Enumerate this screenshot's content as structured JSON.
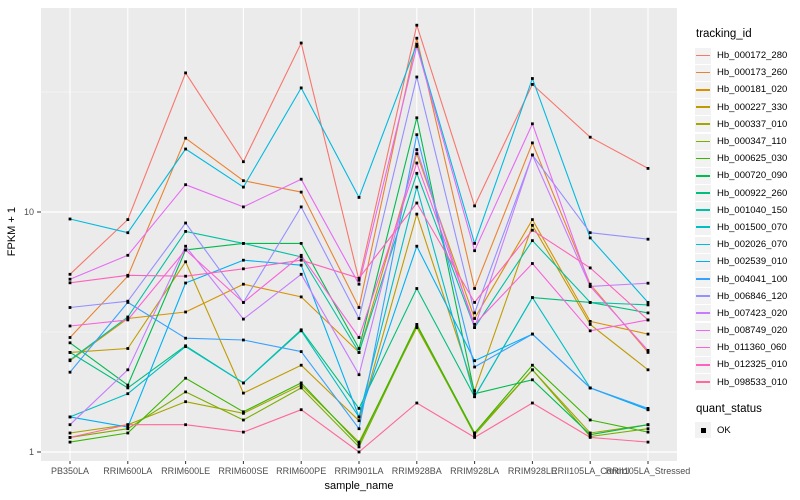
{
  "chart_data": {
    "type": "line",
    "title": "",
    "xlabel": "sample_name",
    "ylabel": "FPKM + 1",
    "y_scale": "log10",
    "y_ticks": [
      1,
      10
    ],
    "y_minor_ticks": [
      3.1623,
      31.623
    ],
    "ylim": [
      0.92,
      71
    ],
    "grid": true,
    "panel_bg": "#EBEBEB",
    "grid_color": "#FFFFFF",
    "tick_label_color": "#4D4D4D",
    "marker": {
      "shape": "square",
      "color": "#000000"
    },
    "legend": {
      "title": "tracking_id",
      "position": "right"
    },
    "quant_legend": {
      "title": "quant_status",
      "items": [
        {
          "label": "OK",
          "marker": "black-square"
        }
      ]
    },
    "categories": [
      "PB350LA",
      "RRIM600LA",
      "RRIM600LE",
      "RRIM600SE",
      "RRIM600PE",
      "RRIM901LA",
      "RRIM928BA",
      "RRIM928LA",
      "RRIM928LE",
      "RRII105LA_Control",
      "RRII105LA_Stressed"
    ],
    "series": [
      {
        "name": "Hb_000172_280",
        "color": "#F8766D",
        "values": [
          5.5,
          9.3,
          38,
          16.2,
          50.6,
          5.2,
          60,
          10.6,
          34,
          20.5,
          15.2
        ]
      },
      {
        "name": "Hb_000173_260",
        "color": "#EA8331",
        "values": [
          3.0,
          5.4,
          20.3,
          13.5,
          12.1,
          4.0,
          53,
          4.8,
          19.4,
          5.0,
          2.6
        ]
      },
      {
        "name": "Hb_000181_020",
        "color": "#D89200",
        "values": [
          2.4,
          3.6,
          3.83,
          5.0,
          4.43,
          2.6,
          17.5,
          3.6,
          9.3,
          3.5,
          3.1
        ]
      },
      {
        "name": "Hb_000227_330",
        "color": "#C09B00",
        "values": [
          2.6,
          2.7,
          6.2,
          1.76,
          2.3,
          1.35,
          9.8,
          1.8,
          8.8,
          3.4,
          2.2
        ]
      },
      {
        "name": "Hb_000337_010",
        "color": "#A3A500",
        "values": [
          1.2,
          1.3,
          1.62,
          1.45,
          1.9,
          1.1,
          3.3,
          1.2,
          2.2,
          1.2,
          1.3
        ]
      },
      {
        "name": "Hb_000347_110",
        "color": "#7CAE00",
        "values": [
          1.15,
          1.25,
          1.78,
          1.36,
          1.85,
          1.05,
          3.35,
          1.18,
          2.2,
          1.16,
          1.25
        ]
      },
      {
        "name": "Hb_000625_030",
        "color": "#39B600",
        "values": [
          1.1,
          1.2,
          2.03,
          1.47,
          1.94,
          1.08,
          3.4,
          1.2,
          2.3,
          1.36,
          1.21
        ]
      },
      {
        "name": "Hb_000720_090",
        "color": "#00BB4E",
        "values": [
          2.85,
          1.9,
          6.95,
          7.4,
          7.4,
          2.7,
          24.7,
          1.75,
          2.0,
          1.18,
          1.3
        ]
      },
      {
        "name": "Hb_000922_260",
        "color": "#00BF7D",
        "values": [
          2.6,
          1.85,
          2.77,
          1.94,
          3.23,
          1.52,
          4.8,
          1.7,
          4.4,
          4.2,
          3.8
        ]
      },
      {
        "name": "Hb_001040_150",
        "color": "#00C1A3",
        "values": [
          2.42,
          3.65,
          8.3,
          7.4,
          6.5,
          2.6,
          14.5,
          3.3,
          7.6,
          4.2,
          4.1
        ]
      },
      {
        "name": "Hb_001500_070",
        "color": "#00BFC4",
        "values": [
          1.4,
          1.75,
          2.75,
          1.94,
          3.2,
          1.4,
          12.7,
          1.7,
          4.4,
          1.85,
          1.5
        ]
      },
      {
        "name": "Hb_002026_070",
        "color": "#00BAE0",
        "values": [
          9.35,
          8.2,
          18.3,
          12.7,
          32.9,
          11.5,
          50,
          7.4,
          36,
          7.8,
          4.2
        ]
      },
      {
        "name": "Hb_002539_010",
        "color": "#00B0F6",
        "values": [
          1.4,
          1.27,
          5.06,
          6.3,
          6.0,
          1.4,
          7.2,
          2.4,
          3.1,
          1.85,
          1.5
        ]
      },
      {
        "name": "Hb_004041_100",
        "color": "#35A2FF",
        "values": [
          2.15,
          4.2,
          2.98,
          2.93,
          2.62,
          1.25,
          21,
          2.26,
          3.1,
          1.85,
          1.52
        ]
      },
      {
        "name": "Hb_006846_120",
        "color": "#9590FF",
        "values": [
          4.0,
          4.25,
          9.0,
          4.2,
          10.5,
          3.6,
          36.5,
          3.8,
          17.3,
          8.2,
          7.7
        ]
      },
      {
        "name": "Hb_007423_020",
        "color": "#C77CFF",
        "values": [
          1.3,
          2.2,
          7.2,
          3.58,
          5.5,
          2.1,
          18.2,
          3.3,
          17.3,
          4.9,
          5.05
        ]
      },
      {
        "name": "Hb_008749_020",
        "color": "#E76BF3",
        "values": [
          5.25,
          6.6,
          13,
          10.5,
          13.7,
          5.0,
          49,
          6.9,
          23.3,
          4.9,
          2.65
        ]
      },
      {
        "name": "Hb_011360_060",
        "color": "#FA62DB",
        "values": [
          3.35,
          3.55,
          6.95,
          4.2,
          6.6,
          3.0,
          16,
          3.4,
          6.1,
          3.2,
          3.55
        ]
      },
      {
        "name": "Hb_012325_010",
        "color": "#FF62BC",
        "values": [
          5.07,
          5.45,
          5.4,
          5.8,
          6.3,
          5.3,
          10.9,
          4.2,
          8.4,
          5.85,
          3.55
        ]
      },
      {
        "name": "Hb_098533_010",
        "color": "#FF6A98",
        "values": [
          1.15,
          1.3,
          1.3,
          1.21,
          1.5,
          1.0,
          1.6,
          1.15,
          1.6,
          1.15,
          1.1
        ]
      }
    ]
  }
}
